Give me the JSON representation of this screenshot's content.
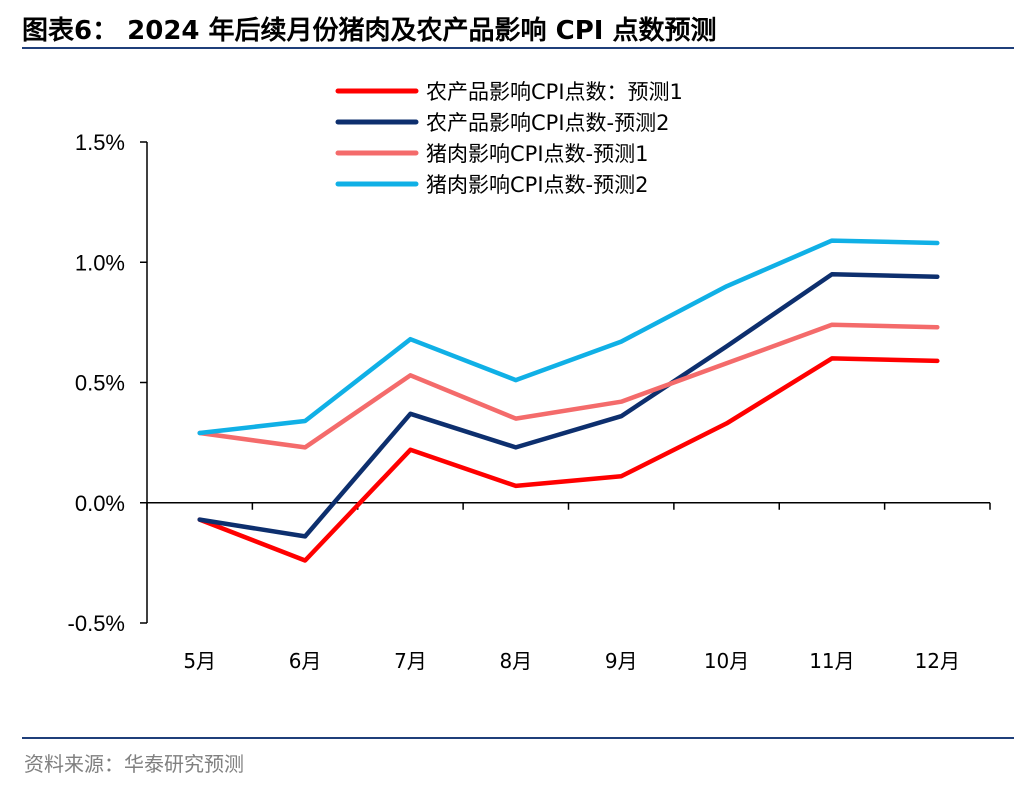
{
  "header": {
    "title": "图表6：  2024 年后续月份猪肉及农产品影响 CPI 点数预测"
  },
  "footer": {
    "source": "资料来源：华泰研究预测"
  },
  "colors": {
    "rule": "#1f3f7a",
    "axis": "#000000"
  },
  "chart_data": {
    "type": "line",
    "title": "",
    "xlabel": "",
    "ylabel": "",
    "categories": [
      "5月",
      "6月",
      "7月",
      "8月",
      "9月",
      "10月",
      "11月",
      "12月"
    ],
    "ylim": [
      -0.5,
      1.5
    ],
    "yticks": [
      -0.5,
      0.0,
      0.5,
      1.0,
      1.5
    ],
    "ytick_labels": [
      "-0.5%",
      "0.0%",
      "0.5%",
      "1.0%",
      "1.5%"
    ],
    "legend_position": "top",
    "grid": false,
    "series": [
      {
        "name": "农产品影响CPI点数：预测1",
        "color": "#ff0000",
        "values": [
          -0.07,
          -0.24,
          0.22,
          0.07,
          0.11,
          0.33,
          0.6,
          0.59
        ]
      },
      {
        "name": "农产品影响CPI点数-预测2",
        "color": "#0d2f6e",
        "values": [
          -0.07,
          -0.14,
          0.37,
          0.23,
          0.36,
          0.65,
          0.95,
          0.94
        ]
      },
      {
        "name": "猪肉影响CPI点数-预测1",
        "color": "#f46b6b",
        "values": [
          0.29,
          0.23,
          0.53,
          0.35,
          0.42,
          0.58,
          0.74,
          0.73
        ]
      },
      {
        "name": "猪肉影响CPI点数-预测2",
        "color": "#10b0e6",
        "values": [
          0.29,
          0.34,
          0.68,
          0.51,
          0.67,
          0.9,
          1.09,
          1.08
        ]
      }
    ]
  }
}
